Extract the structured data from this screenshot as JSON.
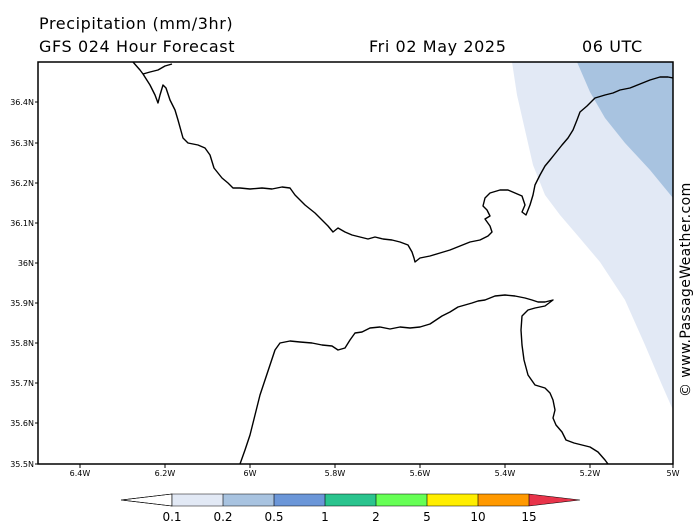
{
  "header": {
    "line1": "Precipitation (mm/3hr)",
    "line2": "GFS 024 Hour Forecast",
    "date": "Fri 02 May 2025",
    "time": "06 UTC"
  },
  "map": {
    "lat_labels": [
      "36.4N",
      "36.3N",
      "36.2N",
      "36.1N",
      "36N",
      "35.9N",
      "35.8N",
      "35.7N",
      "35.6N",
      "35.5N"
    ],
    "lon_labels": [
      "6.4W",
      "6.2W",
      "6W",
      "5.8W",
      "5.6W",
      "5.4W",
      "5.2W",
      "5W"
    ],
    "land_color": "#ffffff",
    "coast_color": "#000000",
    "precip_levels": [
      {
        "range": "0.1-0.2",
        "color": "#e2e9f5"
      },
      {
        "range": "0.2-0.5",
        "color": "#a8c3e0"
      }
    ]
  },
  "legend": {
    "labels": [
      "0.1",
      "0.2",
      "0.5",
      "1",
      "2",
      "5",
      "10",
      "15"
    ],
    "colors": [
      "#ffffff",
      "#e2e9f5",
      "#a8c3e0",
      "#6b96d8",
      "#2bc48e",
      "#66ff55",
      "#ffee00",
      "#ff9900",
      "#e8344a"
    ]
  },
  "credit": "© www.PassageWeather.com"
}
